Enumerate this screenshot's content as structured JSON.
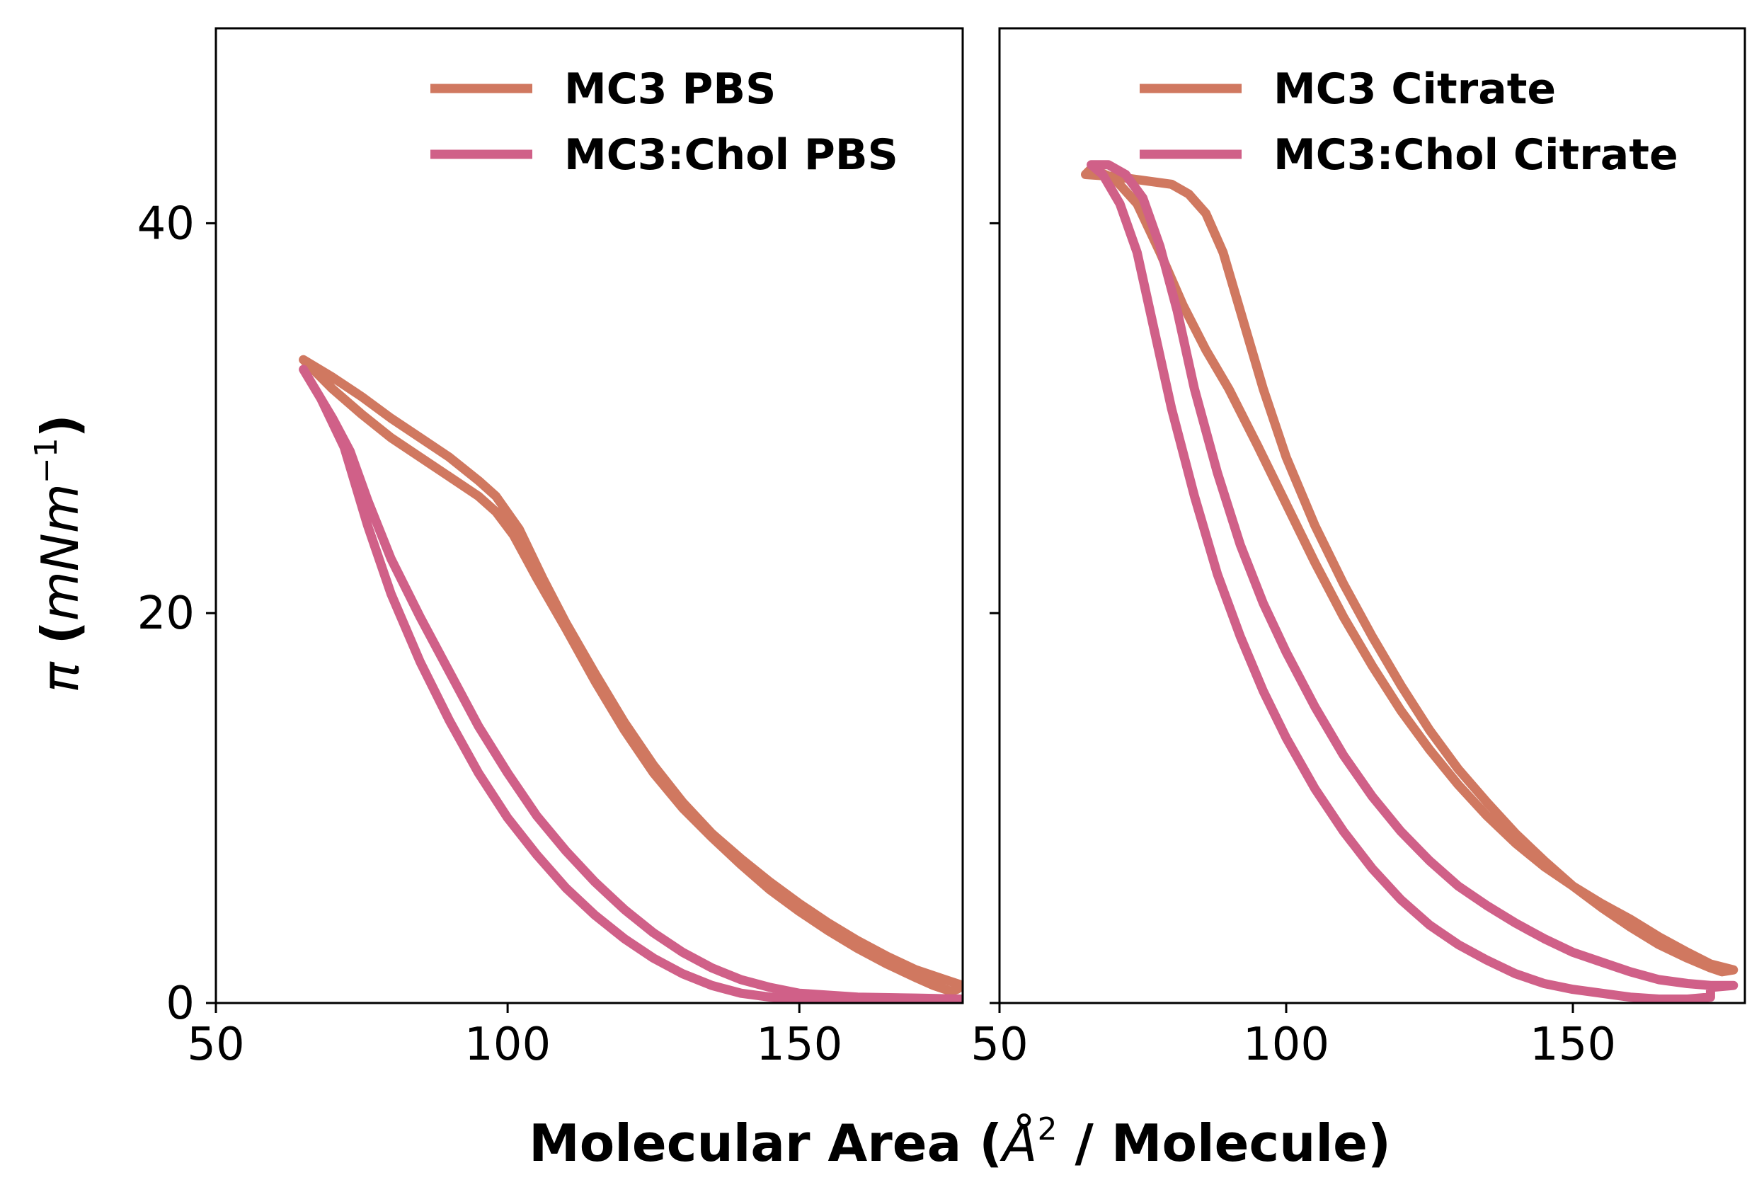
{
  "figure": {
    "xlabel": "Molecular Area (Å² / Molecule)",
    "xlabel_parts": {
      "prefix": "Molecular Area (",
      "symbol": "Å",
      "sup": "2",
      "suffix": " / Molecule)"
    },
    "ylabel": "π (mNm⁻¹)",
    "ylabel_parts": {
      "symbol": "π",
      "open": " (",
      "unit": "mNm",
      "sup": "−1",
      "close": ")"
    }
  },
  "colors": {
    "mc3": "#d07860",
    "mc3chol": "#d06088"
  },
  "chart_data": [
    {
      "type": "line",
      "title": "",
      "xlim": [
        50,
        178
      ],
      "ylim": [
        0,
        50
      ],
      "xticks": [
        50,
        100,
        150
      ],
      "yticks": [
        0,
        20,
        40
      ],
      "grid": false,
      "legend": "top-right",
      "series": [
        {
          "name": "MC3 PBS",
          "color": "#d07860",
          "points": [
            [
              65,
              33
            ],
            [
              70,
              31.5
            ],
            [
              75,
              30.2
            ],
            [
              80,
              29
            ],
            [
              85,
              28
            ],
            [
              90,
              27
            ],
            [
              95,
              26
            ],
            [
              98,
              25.2
            ],
            [
              101,
              24
            ],
            [
              105,
              21.8
            ],
            [
              110,
              19.2
            ],
            [
              115,
              16.5
            ],
            [
              120,
              14
            ],
            [
              125,
              11.8
            ],
            [
              130,
              10
            ],
            [
              135,
              8.5
            ],
            [
              140,
              7.1
            ],
            [
              145,
              5.8
            ],
            [
              150,
              4.7
            ],
            [
              155,
              3.7
            ],
            [
              160,
              2.8
            ],
            [
              165,
              2
            ],
            [
              170,
              1.3
            ],
            [
              173,
              0.9
            ],
            [
              175,
              0.7
            ],
            [
              176,
              0.6
            ],
            [
              177,
              0.7
            ],
            [
              178,
              0.9
            ],
            [
              175,
              1.2
            ],
            [
              170,
              1.7
            ],
            [
              165,
              2.4
            ],
            [
              160,
              3.2
            ],
            [
              155,
              4.1
            ],
            [
              150,
              5.1
            ],
            [
              145,
              6.2
            ],
            [
              140,
              7.4
            ],
            [
              135,
              8.7
            ],
            [
              130,
              10.3
            ],
            [
              125,
              12.2
            ],
            [
              120,
              14.4
            ],
            [
              115,
              16.9
            ],
            [
              110,
              19.5
            ],
            [
              106,
              21.8
            ],
            [
              102,
              24.3
            ],
            [
              98,
              26
            ],
            [
              95,
              26.8
            ],
            [
              90,
              28
            ],
            [
              85,
              29
            ],
            [
              80,
              30
            ],
            [
              75,
              31.1
            ],
            [
              70,
              32.1
            ],
            [
              65,
              33
            ]
          ]
        },
        {
          "name": "MC3:Chol PBS",
          "color": "#d06088",
          "points": [
            [
              65,
              32.5
            ],
            [
              68,
              31
            ],
            [
              72,
              28.5
            ],
            [
              76,
              24.5
            ],
            [
              80,
              21
            ],
            [
              85,
              17.5
            ],
            [
              90,
              14.5
            ],
            [
              95,
              11.8
            ],
            [
              100,
              9.5
            ],
            [
              105,
              7.6
            ],
            [
              110,
              5.9
            ],
            [
              115,
              4.5
            ],
            [
              120,
              3.3
            ],
            [
              125,
              2.3
            ],
            [
              130,
              1.5
            ],
            [
              135,
              0.9
            ],
            [
              140,
              0.5
            ],
            [
              145,
              0.3
            ],
            [
              150,
              0.2
            ],
            [
              160,
              0.1
            ],
            [
              170,
              0.05
            ],
            [
              178,
              0
            ],
            [
              178,
              0.2
            ],
            [
              170,
              0.25
            ],
            [
              160,
              0.3
            ],
            [
              150,
              0.5
            ],
            [
              145,
              0.8
            ],
            [
              140,
              1.2
            ],
            [
              135,
              1.8
            ],
            [
              130,
              2.6
            ],
            [
              125,
              3.6
            ],
            [
              120,
              4.8
            ],
            [
              115,
              6.2
            ],
            [
              110,
              7.8
            ],
            [
              105,
              9.6
            ],
            [
              100,
              11.8
            ],
            [
              95,
              14.2
            ],
            [
              90,
              17
            ],
            [
              85,
              19.8
            ],
            [
              80,
              22.8
            ],
            [
              76,
              25.8
            ],
            [
              73,
              28.3
            ],
            [
              70,
              30
            ],
            [
              65,
              32.5
            ]
          ]
        }
      ]
    },
    {
      "type": "line",
      "title": "",
      "xlim": [
        50,
        180
      ],
      "ylim": [
        0,
        50
      ],
      "xticks": [
        50,
        100,
        150
      ],
      "yticks": [
        0,
        20,
        40
      ],
      "grid": false,
      "legend": "top-right",
      "series": [
        {
          "name": "MC3 Citrate",
          "color": "#d07860",
          "points": [
            [
              65,
              42.5
            ],
            [
              70,
              42.4
            ],
            [
              75,
              42.2
            ],
            [
              80,
              42
            ],
            [
              83,
              41.5
            ],
            [
              86,
              40.5
            ],
            [
              89,
              38.5
            ],
            [
              92,
              35.5
            ],
            [
              96,
              31.5
            ],
            [
              100,
              28
            ],
            [
              105,
              24.5
            ],
            [
              110,
              21.5
            ],
            [
              115,
              18.8
            ],
            [
              120,
              16.3
            ],
            [
              125,
              14
            ],
            [
              130,
              12
            ],
            [
              135,
              10.3
            ],
            [
              140,
              8.7
            ],
            [
              145,
              7.3
            ],
            [
              150,
              6
            ],
            [
              155,
              4.9
            ],
            [
              160,
              3.9
            ],
            [
              165,
              3
            ],
            [
              170,
              2.3
            ],
            [
              174,
              1.8
            ],
            [
              176,
              1.6
            ],
            [
              178,
              1.7
            ],
            [
              174,
              2
            ],
            [
              170,
              2.6
            ],
            [
              165,
              3.4
            ],
            [
              160,
              4.3
            ],
            [
              155,
              5.1
            ],
            [
              150,
              6
            ],
            [
              145,
              7
            ],
            [
              140,
              8.2
            ],
            [
              135,
              9.6
            ],
            [
              130,
              11.2
            ],
            [
              125,
              13
            ],
            [
              120,
              15
            ],
            [
              115,
              17.3
            ],
            [
              110,
              19.8
            ],
            [
              105,
              22.6
            ],
            [
              100,
              25.6
            ],
            [
              95,
              28.6
            ],
            [
              90,
              31.5
            ],
            [
              86,
              33.5
            ],
            [
              82,
              35.8
            ],
            [
              78,
              38.5
            ],
            [
              74,
              41
            ],
            [
              70,
              42.3
            ],
            [
              66,
              42.8
            ],
            [
              65,
              42.5
            ]
          ]
        },
        {
          "name": "MC3:Chol Citrate",
          "color": "#d06088",
          "points": [
            [
              66,
              43
            ],
            [
              68,
              42.5
            ],
            [
              71,
              41
            ],
            [
              74,
              38.5
            ],
            [
              77,
              34.5
            ],
            [
              80,
              30.5
            ],
            [
              84,
              26
            ],
            [
              88,
              22
            ],
            [
              92,
              18.8
            ],
            [
              96,
              16
            ],
            [
              100,
              13.6
            ],
            [
              105,
              11
            ],
            [
              110,
              8.8
            ],
            [
              115,
              6.9
            ],
            [
              120,
              5.3
            ],
            [
              125,
              4
            ],
            [
              130,
              3
            ],
            [
              135,
              2.2
            ],
            [
              140,
              1.5
            ],
            [
              145,
              1
            ],
            [
              150,
              0.7
            ],
            [
              155,
              0.5
            ],
            [
              160,
              0.3
            ],
            [
              165,
              0.2
            ],
            [
              170,
              0.2
            ],
            [
              174,
              0.3
            ],
            [
              174,
              0.8
            ],
            [
              178,
              0.9
            ],
            [
              174,
              0.9
            ],
            [
              170,
              1
            ],
            [
              165,
              1.2
            ],
            [
              160,
              1.6
            ],
            [
              155,
              2.1
            ],
            [
              150,
              2.6
            ],
            [
              145,
              3.3
            ],
            [
              140,
              4.1
            ],
            [
              135,
              5
            ],
            [
              130,
              6
            ],
            [
              125,
              7.3
            ],
            [
              120,
              8.8
            ],
            [
              115,
              10.6
            ],
            [
              110,
              12.7
            ],
            [
              105,
              15.2
            ],
            [
              100,
              18
            ],
            [
              96,
              20.5
            ],
            [
              92,
              23.5
            ],
            [
              88,
              27.2
            ],
            [
              84,
              31.5
            ],
            [
              81,
              35.5
            ],
            [
              78,
              38.8
            ],
            [
              75,
              41.3
            ],
            [
              72,
              42.5
            ],
            [
              69,
              43
            ],
            [
              66,
              43
            ]
          ]
        }
      ]
    }
  ]
}
